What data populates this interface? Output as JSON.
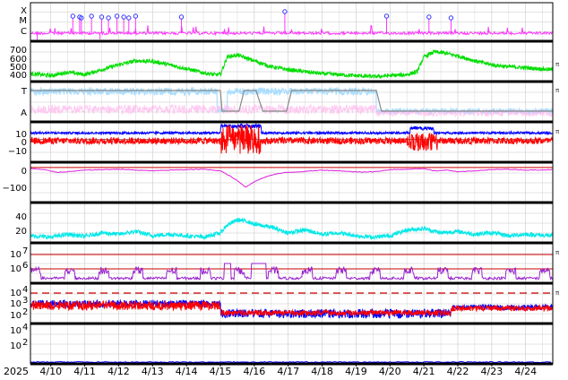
{
  "chart_data": {
    "type": "line",
    "year_label": "2025",
    "x_tick_labels": [
      "4/10",
      "4/11",
      "4/12",
      "4/13",
      "4/14",
      "4/15",
      "4/16",
      "4/17",
      "4/18",
      "4/19",
      "4/20",
      "4/21",
      "4/22",
      "4/23",
      "4/24"
    ],
    "x_range_days": [
      9.4,
      24.8
    ],
    "grid": true,
    "colors": {
      "flare": "#ff33ff",
      "speed": "#00dd00",
      "temp": "#aaddff",
      "dens": "#ffbbee",
      "mode": "#888888",
      "bt": "#0000ff",
      "bz": "#ff0000",
      "dst": "#dd22dd",
      "kp": "#00e8e8",
      "electrons": "#9922cc",
      "protons_low": "#ff0000",
      "protons_high": "#0000ff",
      "ref": "#cc0000"
    },
    "panels": [
      {
        "id": "xray",
        "tick_labels": [
          "X",
          "M",
          "C"
        ]
      },
      {
        "id": "speed",
        "tick_labels": [
          "700",
          "600",
          "500",
          "400"
        ],
        "ylim": [
          350,
          750
        ]
      },
      {
        "id": "temp_density",
        "tick_labels": [
          "T",
          "A"
        ]
      },
      {
        "id": "imf",
        "tick_labels": [
          "10",
          "0",
          "−10"
        ],
        "ylim": [
          -20,
          15
        ]
      },
      {
        "id": "dst",
        "tick_labels": [
          "0",
          "−100"
        ],
        "ylim": [
          -160,
          20
        ]
      },
      {
        "id": "kp",
        "tick_labels": [
          "40",
          "20"
        ],
        "ylim": [
          0,
          55
        ]
      },
      {
        "id": "electrons",
        "tick_labels": [
          "10",
          "7",
          "10",
          "6"
        ]
      },
      {
        "id": "protons",
        "tick_labels": [
          "10",
          "4",
          "10",
          "3",
          "10",
          "2"
        ]
      },
      {
        "id": "protons2",
        "tick_labels": [
          "10",
          "4",
          "10",
          "2"
        ]
      }
    ],
    "flare_events_day": [
      10.65,
      10.85,
      10.9,
      11.2,
      11.5,
      11.7,
      11.95,
      12.15,
      12.3,
      12.5,
      13.85,
      16.9,
      19.9,
      21.15,
      21.8
    ],
    "speed_series_kmps": [
      [
        9.4,
        430
      ],
      [
        10.0,
        410
      ],
      [
        10.5,
        445
      ],
      [
        11.0,
        420
      ],
      [
        11.5,
        470
      ],
      [
        12.0,
        520
      ],
      [
        12.5,
        560
      ],
      [
        13.0,
        555
      ],
      [
        13.5,
        520
      ],
      [
        14.0,
        480
      ],
      [
        14.5,
        440
      ],
      [
        14.8,
        420
      ],
      [
        15.0,
        420
      ],
      [
        15.2,
        600
      ],
      [
        15.5,
        620
      ],
      [
        16.0,
        560
      ],
      [
        16.5,
        500
      ],
      [
        17.0,
        470
      ],
      [
        17.5,
        450
      ],
      [
        18.0,
        430
      ],
      [
        18.5,
        420
      ],
      [
        19.0,
        410
      ],
      [
        19.5,
        400
      ],
      [
        20.0,
        410
      ],
      [
        20.5,
        420
      ],
      [
        20.8,
        450
      ],
      [
        21.0,
        600
      ],
      [
        21.3,
        650
      ],
      [
        21.6,
        640
      ],
      [
        22.0,
        610
      ],
      [
        22.5,
        560
      ],
      [
        23.0,
        520
      ],
      [
        23.5,
        500
      ],
      [
        24.0,
        490
      ],
      [
        24.8,
        470
      ]
    ],
    "dst_series_nT": [
      [
        9.4,
        -5
      ],
      [
        9.8,
        -10
      ],
      [
        10.2,
        -22
      ],
      [
        10.6,
        -18
      ],
      [
        11.0,
        -12
      ],
      [
        11.5,
        -10
      ],
      [
        12.0,
        -8
      ],
      [
        12.5,
        -12
      ],
      [
        13.0,
        -15
      ],
      [
        13.5,
        -12
      ],
      [
        14.0,
        -10
      ],
      [
        14.5,
        -8
      ],
      [
        15.0,
        -15
      ],
      [
        15.3,
        -40
      ],
      [
        15.5,
        -60
      ],
      [
        15.75,
        -90
      ],
      [
        16.0,
        -65
      ],
      [
        16.3,
        -45
      ],
      [
        16.6,
        -30
      ],
      [
        17.0,
        -22
      ],
      [
        17.5,
        -18
      ],
      [
        18.0,
        -12
      ],
      [
        18.5,
        -15
      ],
      [
        19.0,
        -20
      ],
      [
        19.5,
        -20
      ],
      [
        20.0,
        -10
      ],
      [
        20.5,
        -8
      ],
      [
        21.0,
        -5
      ],
      [
        21.3,
        -15
      ],
      [
        21.7,
        -12
      ],
      [
        22.0,
        -20
      ],
      [
        22.5,
        -15
      ],
      [
        23.0,
        -10
      ],
      [
        23.5,
        -8
      ],
      [
        24.0,
        -12
      ],
      [
        24.8,
        -10
      ]
    ],
    "kp_series": [
      [
        9.4,
        10
      ],
      [
        10.0,
        8
      ],
      [
        10.5,
        12
      ],
      [
        11.0,
        9
      ],
      [
        11.5,
        14
      ],
      [
        12.0,
        12
      ],
      [
        12.5,
        16
      ],
      [
        13.0,
        10
      ],
      [
        13.5,
        12
      ],
      [
        14.0,
        10
      ],
      [
        14.5,
        8
      ],
      [
        15.0,
        14
      ],
      [
        15.2,
        25
      ],
      [
        15.5,
        32
      ],
      [
        15.8,
        30
      ],
      [
        16.0,
        26
      ],
      [
        16.5,
        22
      ],
      [
        17.0,
        14
      ],
      [
        17.5,
        18
      ],
      [
        18.0,
        12
      ],
      [
        18.5,
        14
      ],
      [
        19.0,
        10
      ],
      [
        19.5,
        8
      ],
      [
        20.0,
        10
      ],
      [
        20.5,
        18
      ],
      [
        21.0,
        20
      ],
      [
        21.5,
        14
      ],
      [
        22.0,
        16
      ],
      [
        22.5,
        12
      ],
      [
        23.0,
        14
      ],
      [
        23.5,
        10
      ],
      [
        24.0,
        12
      ],
      [
        24.8,
        10
      ]
    ]
  }
}
